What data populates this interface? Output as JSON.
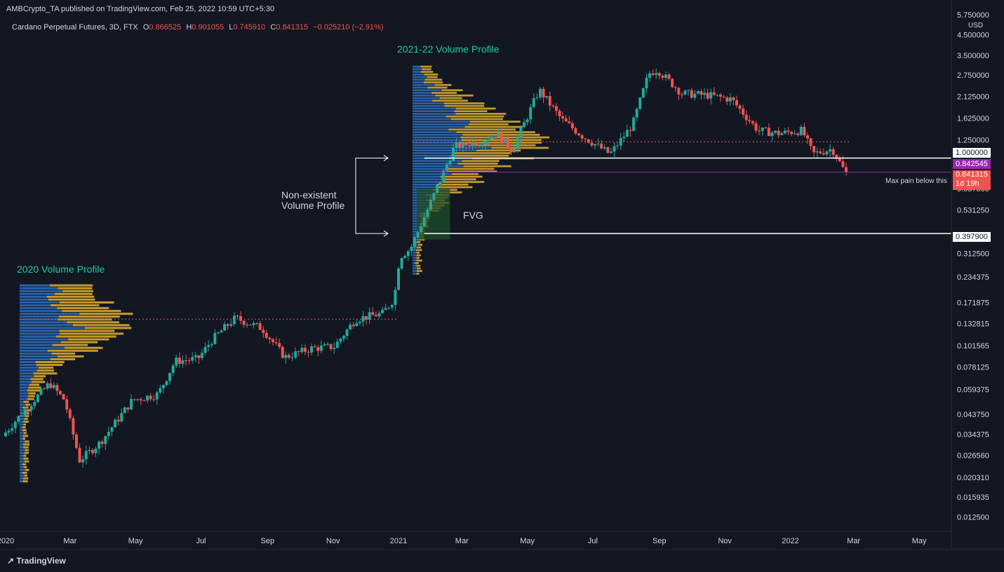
{
  "header": {
    "published": "AMBCrypto_TA published on TradingView.com, Feb 25, 2022 10:59 UTC+5:30",
    "symbol": "Cardano Perpetual Futures, 3D, FTX",
    "o_label": "O",
    "o_value": "0.866525",
    "h_label": "H",
    "h_value": "0.901055",
    "l_label": "L",
    "l_value": "0.745910",
    "c_label": "C",
    "c_value": "0.841315",
    "change": "−0.025210 (−2.91%)"
  },
  "footer": {
    "brand": "TradingView"
  },
  "colors": {
    "background": "#131722",
    "up": "#26a69a",
    "down": "#ef5350",
    "profile_blue": "#2962a8",
    "profile_gold": "#c49a2c",
    "annotation_green": "#22c5a0",
    "magenta": "#9c27b0",
    "fvg": "#1e4d2b"
  },
  "chart_data": {
    "type": "candlestick",
    "y_scale": "log",
    "ylim": [
      0.0105,
      5.8
    ],
    "y_unit_label": "USD",
    "y_ticks": [
      "5.750000",
      "4.500000",
      "3.500000",
      "2.750000",
      "2.125000",
      "1.625000",
      "1.250000",
      "0.687500",
      "0.531250",
      "0.312500",
      "0.234375",
      "0.171875",
      "0.132815",
      "0.101565",
      "0.078125",
      "0.059375",
      "0.043750",
      "0.034375",
      "0.026560",
      "0.020310",
      "0.015935",
      "0.012500"
    ],
    "x_ticks": [
      "2020",
      "Mar",
      "May",
      "Jul",
      "Sep",
      "Nov",
      "2021",
      "Mar",
      "May",
      "Jul",
      "Sep",
      "Nov",
      "2022",
      "Mar",
      "May"
    ],
    "x_range": [
      "2020-01-01",
      "2022-05-31"
    ],
    "price_path": [
      [
        "2020-01-01",
        0.0335
      ],
      [
        "2020-01-20",
        0.045
      ],
      [
        "2020-02-14",
        0.064
      ],
      [
        "2020-02-28",
        0.052
      ],
      [
        "2020-03-13",
        0.025
      ],
      [
        "2020-04-01",
        0.031
      ],
      [
        "2020-05-01",
        0.052
      ],
      [
        "2020-05-25",
        0.056
      ],
      [
        "2020-06-10",
        0.084
      ],
      [
        "2020-07-01",
        0.086
      ],
      [
        "2020-07-15",
        0.11
      ],
      [
        "2020-08-05",
        0.142
      ],
      [
        "2020-08-30",
        0.125
      ],
      [
        "2020-09-20",
        0.088
      ],
      [
        "2020-10-15",
        0.098
      ],
      [
        "2020-11-05",
        0.1
      ],
      [
        "2020-11-25",
        0.14
      ],
      [
        "2020-12-20",
        0.15
      ],
      [
        "2020-12-31",
        0.18
      ],
      [
        "2021-01-05",
        0.3
      ],
      [
        "2021-01-15",
        0.33
      ],
      [
        "2021-02-10",
        0.72
      ],
      [
        "2021-02-25",
        1.15
      ],
      [
        "2021-03-20",
        1.22
      ],
      [
        "2021-04-05",
        1.35
      ],
      [
        "2021-04-20",
        1.1
      ],
      [
        "2021-05-15",
        2.3
      ],
      [
        "2021-06-05",
        1.6
      ],
      [
        "2021-06-25",
        1.3
      ],
      [
        "2021-07-20",
        1.05
      ],
      [
        "2021-08-10",
        1.5
      ],
      [
        "2021-08-25",
        2.8
      ],
      [
        "2021-09-02",
        2.95
      ],
      [
        "2021-09-25",
        2.2
      ],
      [
        "2021-10-20",
        2.15
      ],
      [
        "2021-11-10",
        2.05
      ],
      [
        "2021-12-05",
        1.4
      ],
      [
        "2021-12-25",
        1.35
      ],
      [
        "2022-01-15",
        1.4
      ],
      [
        "2022-01-25",
        1.05
      ],
      [
        "2022-02-12",
        1.12
      ],
      [
        "2022-02-24",
        0.8413
      ]
    ],
    "series": [
      {
        "name": "2020 Volume Profile",
        "date_range": [
          "2020-01-01",
          "2020-12-31"
        ],
        "poc": 0.14
      },
      {
        "name": "2021-22 Volume Profile",
        "date_range": [
          "2021-01-01",
          "2022-02-24"
        ],
        "poc": 1.22
      }
    ],
    "levels": [
      {
        "value": 1.0,
        "label": "1.000000",
        "style": "white"
      },
      {
        "value": 0.842545,
        "label": "0.842545",
        "style": "magenta"
      },
      {
        "value": 0.3979,
        "label": "0.397900",
        "style": "white"
      }
    ],
    "last_price": {
      "value": 0.841315,
      "label": "0.841315",
      "countdown": "1d 19h"
    },
    "annotations": {
      "profile_2020": "2020 Volume Profile",
      "profile_2021": "2021-22 Volume Profile",
      "non_existent": [
        "Non-existent",
        "Volume Profile"
      ],
      "fvg": "FVG",
      "max_pain": "Max pain below this"
    }
  }
}
